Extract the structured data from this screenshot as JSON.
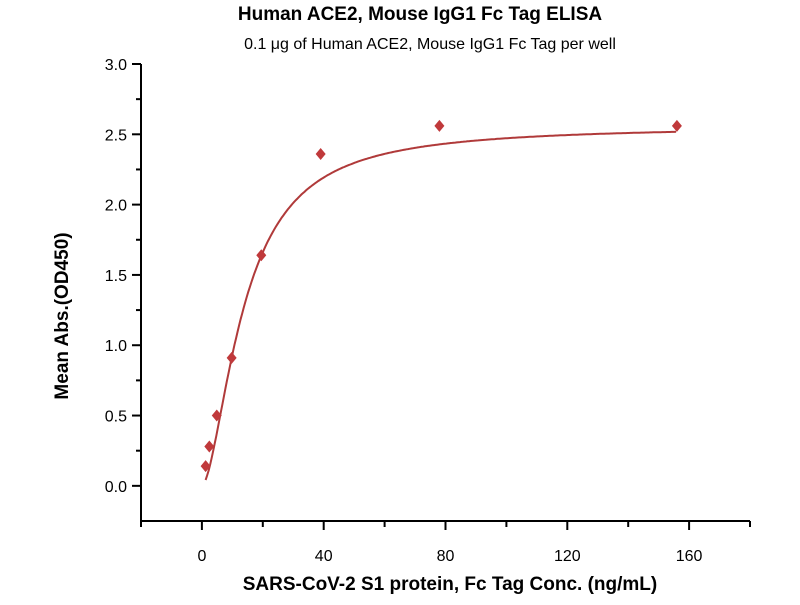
{
  "chart_data": {
    "type": "scatter",
    "title": "Human ACE2, Mouse IgG1 Fc Tag ELISA",
    "subtitle": "0.1 μg of Human ACE2, Mouse IgG1 Fc Tag per well",
    "xlabel": "SARS-CoV-2 S1 protein, Fc Tag Conc. (ng/mL)",
    "ylabel": "Mean Abs.(OD450)",
    "xlim": [
      -20,
      180
    ],
    "ylim": [
      -0.25,
      3.0
    ],
    "xticks": [
      0,
      40,
      80,
      120,
      160
    ],
    "yticks": [
      0.0,
      0.5,
      1.0,
      1.5,
      2.0,
      2.5,
      3.0
    ],
    "ytick_labels": [
      "0.0",
      "0.5",
      "1.0",
      "1.5",
      "2.0",
      "2.5",
      "3.0"
    ],
    "grid": false,
    "series": [
      {
        "name": "Mean Abs.",
        "x": [
          1.22,
          2.44,
          4.88,
          9.77,
          19.5,
          39,
          78,
          156
        ],
        "y": [
          0.14,
          0.28,
          0.5,
          0.91,
          1.64,
          2.36,
          2.56,
          2.56
        ],
        "fit": "4PL",
        "fit_params": {
          "bottom": 0.0,
          "top": 2.56,
          "ec50": 13.9,
          "hill": 1.69
        }
      }
    ],
    "color": "#c0393b",
    "curve_color": "#b03a3a"
  }
}
